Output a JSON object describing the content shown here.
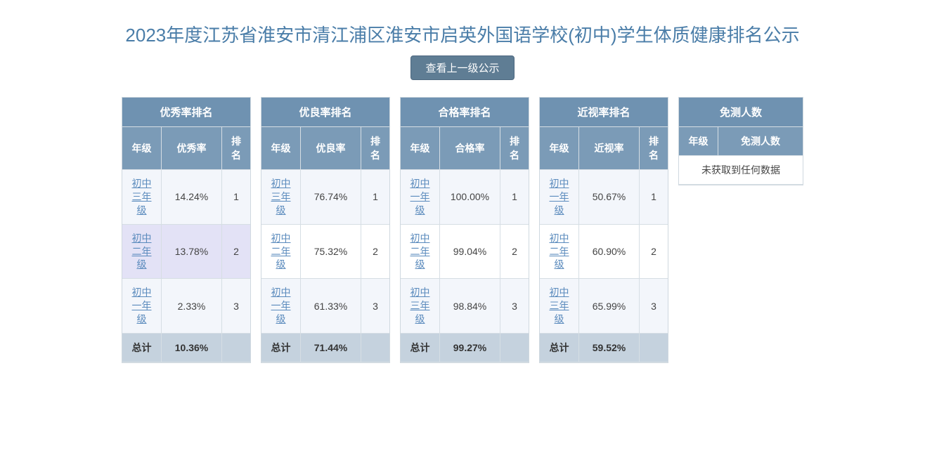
{
  "title": "2023年度江苏省淮安市清江浦区淮安市启英外国语学校(初中)学生体质健康排名公示",
  "button_label": "查看上一级公示",
  "colors": {
    "title_color": "#4a7da8",
    "button_bg": "#5f7d94",
    "header_bg_title": "#6f92b1",
    "header_bg_cols": "#7b9bb7",
    "row_odd_bg": "#f3f6fb",
    "row_hover_bg": "#e3e2f6",
    "total_bg": "#c5d2de",
    "link_color": "#5b8bbd",
    "border_color": "#cfd8df"
  },
  "common": {
    "grade_header": "年级",
    "rank_header": "排名",
    "total_label": "总计"
  },
  "tables": [
    {
      "title": "优秀率排名",
      "value_header": "优秀率",
      "rows": [
        {
          "grade": "初中三年级",
          "value": "14.24%",
          "rank": "1",
          "hover": false
        },
        {
          "grade": "初中二年级",
          "value": "13.78%",
          "rank": "2",
          "hover": true
        },
        {
          "grade": "初中一年级",
          "value": "2.33%",
          "rank": "3",
          "hover": false
        }
      ],
      "total": "10.36%"
    },
    {
      "title": "优良率排名",
      "value_header": "优良率",
      "rows": [
        {
          "grade": "初中三年级",
          "value": "76.74%",
          "rank": "1",
          "hover": false
        },
        {
          "grade": "初中二年级",
          "value": "75.32%",
          "rank": "2",
          "hover": false
        },
        {
          "grade": "初中一年级",
          "value": "61.33%",
          "rank": "3",
          "hover": false
        }
      ],
      "total": "71.44%"
    },
    {
      "title": "合格率排名",
      "value_header": "合格率",
      "rows": [
        {
          "grade": "初中一年级",
          "value": "100.00%",
          "rank": "1",
          "hover": false
        },
        {
          "grade": "初中二年级",
          "value": "99.04%",
          "rank": "2",
          "hover": false
        },
        {
          "grade": "初中三年级",
          "value": "98.84%",
          "rank": "3",
          "hover": false
        }
      ],
      "total": "99.27%"
    },
    {
      "title": "近视率排名",
      "value_header": "近视率",
      "rows": [
        {
          "grade": "初中一年级",
          "value": "50.67%",
          "rank": "1",
          "hover": false
        },
        {
          "grade": "初中二年级",
          "value": "60.90%",
          "rank": "2",
          "hover": false
        },
        {
          "grade": "初中三年级",
          "value": "65.99%",
          "rank": "3",
          "hover": false
        }
      ],
      "total": "59.52%"
    }
  ],
  "exempt_table": {
    "title": "免测人数",
    "grade_header": "年级",
    "value_header": "免测人数",
    "empty_text": "未获取到任何数据"
  }
}
